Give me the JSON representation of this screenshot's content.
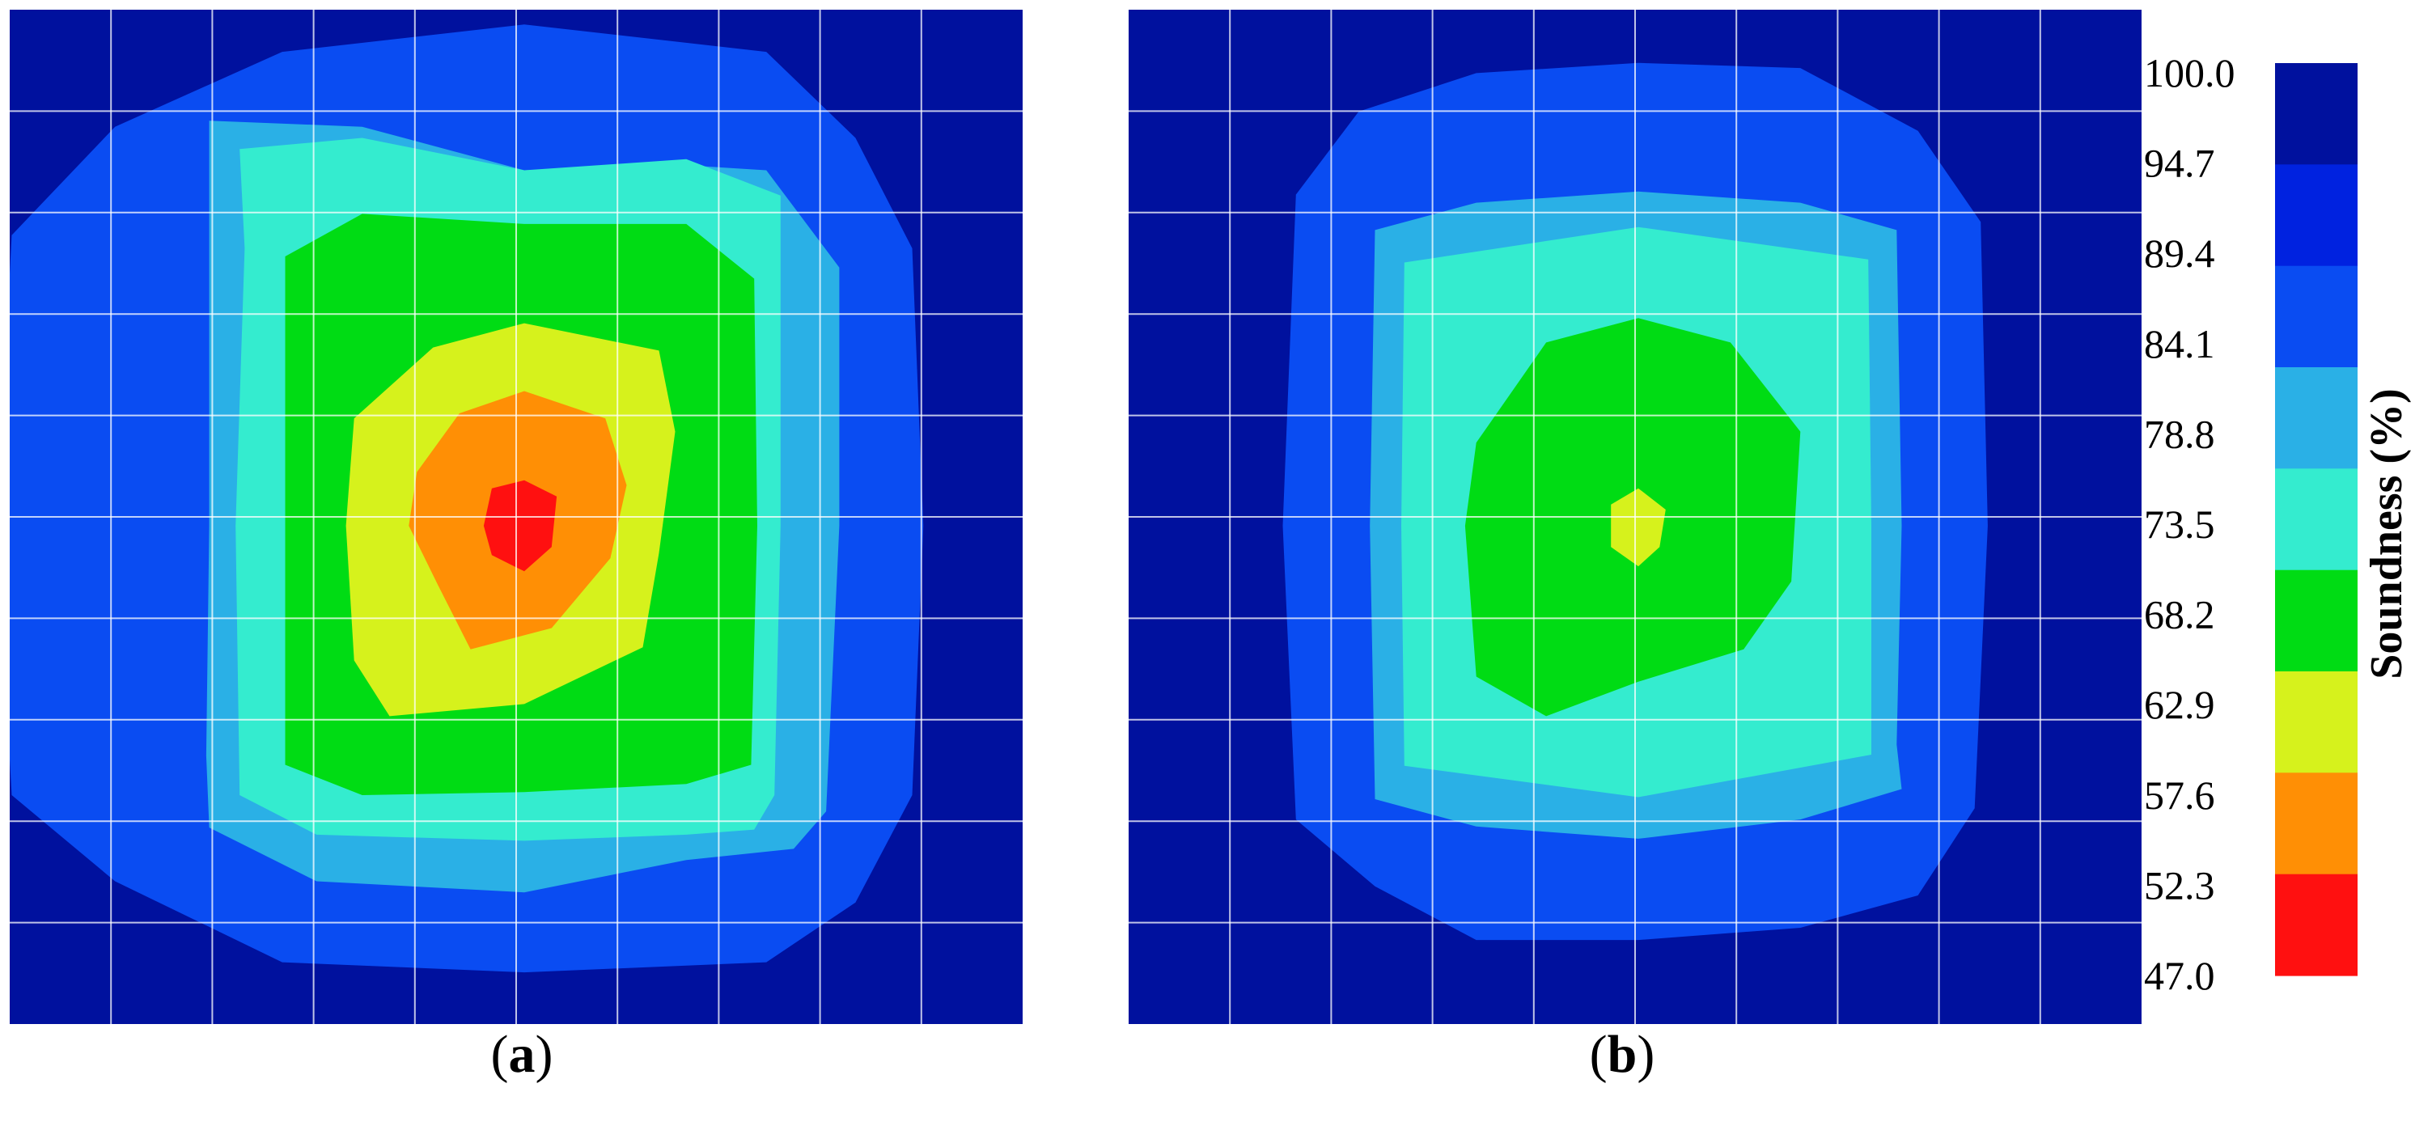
{
  "chart_data": {
    "type": "heatmap",
    "colorbar": {
      "title": "Soundness (%)",
      "ticks": [
        "100.0",
        "94.7",
        "89.4",
        "84.1",
        "78.8",
        "73.5",
        "68.2",
        "62.9",
        "57.6",
        "52.3",
        "47.0"
      ],
      "range": [
        47.0,
        100.0
      ],
      "colors": [
        "#00119e",
        "#0022e0",
        "#0a4cf2",
        "#2ab0e6",
        "#34eccf",
        "#00dc14",
        "#d6f21c",
        "#ff8f05",
        "#ff1010"
      ]
    },
    "panels": [
      {
        "label_open": "(",
        "label": "a",
        "label_close": ")",
        "grid": {
          "rows": 10,
          "cols": 10
        },
        "contours": [
          {
            "level": 89.4,
            "color": "#0a4cf2",
            "shape": [
              [
                -5.06,
                -2.87
              ],
              [
                -4.04,
                -3.94
              ],
              [
                -2.39,
                -4.68
              ],
              [
                0.0,
                -4.95
              ],
              [
                2.39,
                -4.68
              ],
              [
                3.27,
                -3.83
              ],
              [
                3.83,
                -2.74
              ],
              [
                3.94,
                0.0
              ],
              [
                3.83,
                2.66
              ],
              [
                3.27,
                3.72
              ],
              [
                2.39,
                4.31
              ],
              [
                0.0,
                4.41
              ],
              [
                -2.39,
                4.31
              ],
              [
                -4.04,
                3.51
              ],
              [
                -5.06,
                2.66
              ],
              [
                -5.21,
                0.0
              ]
            ]
          },
          {
            "level": 84.1,
            "color": "#2ab0e6",
            "shape": [
              [
                -3.11,
                -4.0
              ],
              [
                -1.6,
                -3.94
              ],
              [
                0.0,
                -3.51
              ],
              [
                1.6,
                -3.56
              ],
              [
                2.39,
                -3.51
              ],
              [
                3.11,
                -2.55
              ],
              [
                3.11,
                0.0
              ],
              [
                2.98,
                2.82
              ],
              [
                2.66,
                3.19
              ],
              [
                1.6,
                3.3
              ],
              [
                0.0,
                3.62
              ],
              [
                -2.05,
                3.51
              ],
              [
                -3.11,
                2.98
              ],
              [
                -3.14,
                2.27
              ],
              [
                -3.11,
                0.0
              ],
              [
                -3.11,
                -2.55
              ]
            ]
          },
          {
            "level": 78.8,
            "color": "#34eccf",
            "shape": [
              [
                -2.81,
                -3.72
              ],
              [
                -1.6,
                -3.83
              ],
              [
                0.0,
                -3.51
              ],
              [
                1.6,
                -3.62
              ],
              [
                2.53,
                -3.26
              ],
              [
                2.53,
                0.0
              ],
              [
                2.47,
                2.66
              ],
              [
                2.27,
                3.0
              ],
              [
                1.6,
                3.05
              ],
              [
                0.0,
                3.11
              ],
              [
                -2.05,
                3.05
              ],
              [
                -2.81,
                2.66
              ],
              [
                -2.85,
                0.0
              ],
              [
                -2.76,
                -2.74
              ]
            ]
          },
          {
            "level": 73.5,
            "color": "#00dc14",
            "shape": [
              [
                -2.36,
                -2.66
              ],
              [
                -1.6,
                -3.08
              ],
              [
                0.0,
                -2.98
              ],
              [
                1.6,
                -2.98
              ],
              [
                2.27,
                -2.44
              ],
              [
                2.3,
                0.0
              ],
              [
                2.24,
                2.36
              ],
              [
                1.6,
                2.55
              ],
              [
                0.0,
                2.63
              ],
              [
                -1.6,
                2.66
              ],
              [
                -2.36,
                2.36
              ],
              [
                -2.36,
                0.0
              ]
            ]
          },
          {
            "level": 68.2,
            "color": "#d6f21c",
            "shape": [
              [
                -1.68,
                -1.06
              ],
              [
                -0.9,
                -1.76
              ],
              [
                0.0,
                -2.0
              ],
              [
                1.33,
                -1.73
              ],
              [
                1.49,
                -0.93
              ],
              [
                1.33,
                0.27
              ],
              [
                1.17,
                1.2
              ],
              [
                0.0,
                1.76
              ],
              [
                -1.33,
                1.88
              ],
              [
                -1.68,
                1.33
              ],
              [
                -1.76,
                0.0
              ]
            ]
          },
          {
            "level": 62.9,
            "color": "#ff8f05",
            "shape": [
              [
                -1.06,
                -0.53
              ],
              [
                -0.64,
                -1.11
              ],
              [
                0.0,
                -1.33
              ],
              [
                0.8,
                -1.06
              ],
              [
                1.01,
                -0.4
              ],
              [
                0.85,
                0.32
              ],
              [
                0.27,
                1.01
              ],
              [
                -0.53,
                1.22
              ],
              [
                -0.85,
                0.59
              ],
              [
                -1.14,
                0.0
              ]
            ]
          },
          {
            "level": 57.6,
            "color": "#ff1010",
            "shape": [
              [
                -0.32,
                -0.37
              ],
              [
                0.0,
                -0.45
              ],
              [
                0.32,
                -0.29
              ],
              [
                0.27,
                0.21
              ],
              [
                0.0,
                0.45
              ],
              [
                -0.32,
                0.29
              ],
              [
                -0.4,
                0.0
              ]
            ]
          }
        ]
      },
      {
        "label_open": "(",
        "label": "b",
        "label_close": ")",
        "grid": {
          "rows": 10,
          "cols": 10
        },
        "contours": [
          {
            "level": 89.4,
            "color": "#0a4cf2",
            "shape": [
              [
                -3.38,
                -3.27
              ],
              [
                -2.76,
                -4.09
              ],
              [
                -1.6,
                -4.47
              ],
              [
                0.0,
                -4.57
              ],
              [
                1.6,
                -4.52
              ],
              [
                2.76,
                -3.9
              ],
              [
                3.38,
                -3.0
              ],
              [
                3.45,
                0.0
              ],
              [
                3.32,
                2.79
              ],
              [
                2.76,
                3.65
              ],
              [
                1.6,
                3.97
              ],
              [
                0.0,
                4.09
              ],
              [
                -1.6,
                4.09
              ],
              [
                -2.6,
                3.56
              ],
              [
                -3.38,
                2.9
              ],
              [
                -3.51,
                0.0
              ]
            ]
          },
          {
            "level": 84.1,
            "color": "#2ab0e6",
            "shape": [
              [
                -2.6,
                -2.92
              ],
              [
                -1.6,
                -3.19
              ],
              [
                0.0,
                -3.3
              ],
              [
                1.6,
                -3.19
              ],
              [
                2.55,
                -2.92
              ],
              [
                2.6,
                0.0
              ],
              [
                2.55,
                2.16
              ],
              [
                2.6,
                2.6
              ],
              [
                1.6,
                2.9
              ],
              [
                0.0,
                3.09
              ],
              [
                -1.6,
                2.97
              ],
              [
                -2.6,
                2.7
              ],
              [
                -2.65,
                0.0
              ]
            ]
          },
          {
            "level": 78.8,
            "color": "#34eccf",
            "shape": [
              [
                -2.31,
                -2.6
              ],
              [
                0.0,
                -2.95
              ],
              [
                2.27,
                -2.63
              ],
              [
                2.3,
                0.0
              ],
              [
                2.3,
                2.26
              ],
              [
                0.0,
                2.68
              ],
              [
                -2.31,
                2.37
              ],
              [
                -2.34,
                0.0
              ]
            ]
          },
          {
            "level": 73.5,
            "color": "#00dc14",
            "shape": [
              [
                -1.6,
                -0.82
              ],
              [
                -0.91,
                -1.81
              ],
              [
                0.0,
                -2.05
              ],
              [
                0.91,
                -1.81
              ],
              [
                1.6,
                -0.93
              ],
              [
                1.51,
                0.55
              ],
              [
                1.04,
                1.22
              ],
              [
                0.0,
                1.54
              ],
              [
                -0.91,
                1.88
              ],
              [
                -1.6,
                1.49
              ],
              [
                -1.71,
                0.0
              ]
            ]
          },
          {
            "level": 68.2,
            "color": "#d6f21c",
            "shape": [
              [
                -0.27,
                -0.21
              ],
              [
                0.0,
                -0.37
              ],
              [
                0.27,
                -0.16
              ],
              [
                0.21,
                0.21
              ],
              [
                0.0,
                0.4
              ],
              [
                -0.27,
                0.21
              ]
            ]
          }
        ]
      }
    ]
  }
}
